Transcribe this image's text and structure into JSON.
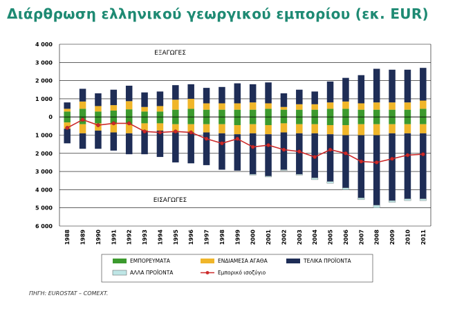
{
  "title": "Διάρθρωση ελληνικού γεωργικού εμπορίου (εκ. EUR)",
  "source": "ΠΗΓΗ: EUROSTAT – COMEXT.",
  "colors": {
    "title": "#1e8a73",
    "emporevmata": "#3c9a2e",
    "endiamesa": "#f0b62a",
    "telika": "#1e2d56",
    "alla": "#bfe6e6",
    "balance": "#cc2a2a",
    "grid": "#000000"
  },
  "chart_data": {
    "type": "bar",
    "stacked": true,
    "title": "Διάρθρωση ελληνικού γεωργικού εμπορίου (εκ. EUR)",
    "annotations": {
      "exports": "ΕΞΑΓΩΓΕΣ",
      "imports": "ΕΙΣΑΓΩΓΕΣ"
    },
    "y_tick_labels": [
      "4 000",
      "3 000",
      "2 000",
      "1 000",
      "0",
      "1 000",
      "2 000",
      "3 000",
      "4 000",
      "5 000",
      "6 000"
    ],
    "y_ticks": [
      4000,
      3000,
      2000,
      1000,
      0,
      -1000,
      -2000,
      -3000,
      -4000,
      -5000,
      -6000
    ],
    "ylim": [
      -6000,
      4000
    ],
    "grid": true,
    "legend_position": "bottom",
    "categories": [
      "1988",
      "1989",
      "1990",
      "1991",
      "1992",
      "1993",
      "1994",
      "1995",
      "1996",
      "1997",
      "1998",
      "1999",
      "2000",
      "2001",
      "2002",
      "2003",
      "2004",
      "2005",
      "2006",
      "2007",
      "2008",
      "2009",
      "2010",
      "2011"
    ],
    "exports": [
      {
        "name": "ΕΜΠΟΡΕΥΜΑΤΑ",
        "values": [
          300,
          450,
          300,
          350,
          420,
          300,
          300,
          400,
          450,
          400,
          400,
          400,
          400,
          450,
          400,
          400,
          400,
          450,
          450,
          400,
          400,
          400,
          400,
          450
        ]
      },
      {
        "name": "ΕΝΔΙΑΜΕΣΑ ΑΓΑΘΑ",
        "values": [
          150,
          400,
          300,
          300,
          450,
          250,
          300,
          550,
          550,
          350,
          350,
          350,
          400,
          300,
          150,
          300,
          300,
          350,
          400,
          350,
          400,
          400,
          400,
          450
        ]
      },
      {
        "name": "ΤΕΛΙΚΑ ΠΡΟΪΟΝΤΑ",
        "values": [
          350,
          700,
          700,
          850,
          850,
          800,
          800,
          800,
          800,
          850,
          900,
          1100,
          1000,
          1150,
          750,
          800,
          700,
          1150,
          1300,
          1550,
          1850,
          1800,
          1800,
          1800
        ]
      },
      {
        "name": "ΑΛΛΑ ΠΡΟΪΟΝΤΑ",
        "values": [
          0,
          0,
          0,
          0,
          0,
          0,
          0,
          0,
          0,
          0,
          0,
          0,
          0,
          0,
          0,
          0,
          0,
          0,
          0,
          0,
          0,
          0,
          0,
          0
        ]
      }
    ],
    "imports": [
      {
        "name": "ΕΜΠΟΡΕΥΜΑΤΑ",
        "values": [
          300,
          400,
          350,
          400,
          400,
          350,
          350,
          400,
          400,
          400,
          400,
          450,
          400,
          450,
          350,
          400,
          400,
          450,
          450,
          400,
          400,
          400,
          400,
          400
        ]
      },
      {
        "name": "ΕΝΔΙΑΜΕΣΑ ΑΓΑΘΑ",
        "values": [
          350,
          500,
          400,
          450,
          500,
          400,
          400,
          450,
          450,
          450,
          500,
          500,
          500,
          500,
          500,
          500,
          500,
          500,
          550,
          600,
          600,
          500,
          500,
          500
        ]
      },
      {
        "name": "ΤΕΛΙΚΑ ΠΡΟΪΟΝΤΑ",
        "values": [
          800,
          850,
          1000,
          1000,
          1150,
          1300,
          1450,
          1650,
          1700,
          1800,
          2000,
          2000,
          2250,
          2300,
          2050,
          2250,
          2450,
          2600,
          2900,
          3450,
          3850,
          3700,
          3600,
          3600
        ]
      },
      {
        "name": "ΑΛΛΑ ΠΡΟΪΟΝΤΑ",
        "values": [
          0,
          0,
          0,
          0,
          0,
          0,
          0,
          0,
          0,
          0,
          0,
          0,
          50,
          50,
          50,
          50,
          100,
          100,
          100,
          100,
          150,
          100,
          100,
          100
        ]
      }
    ],
    "balance": {
      "name": "Εμπορικό ισοζύγιο",
      "values": [
        -600,
        -150,
        -450,
        -350,
        -350,
        -800,
        -850,
        -800,
        -850,
        -1200,
        -1450,
        -1200,
        -1650,
        -1550,
        -1800,
        -1900,
        -2200,
        -1800,
        -2000,
        -2450,
        -2500,
        -2300,
        -2100,
        -2050
      ]
    }
  }
}
